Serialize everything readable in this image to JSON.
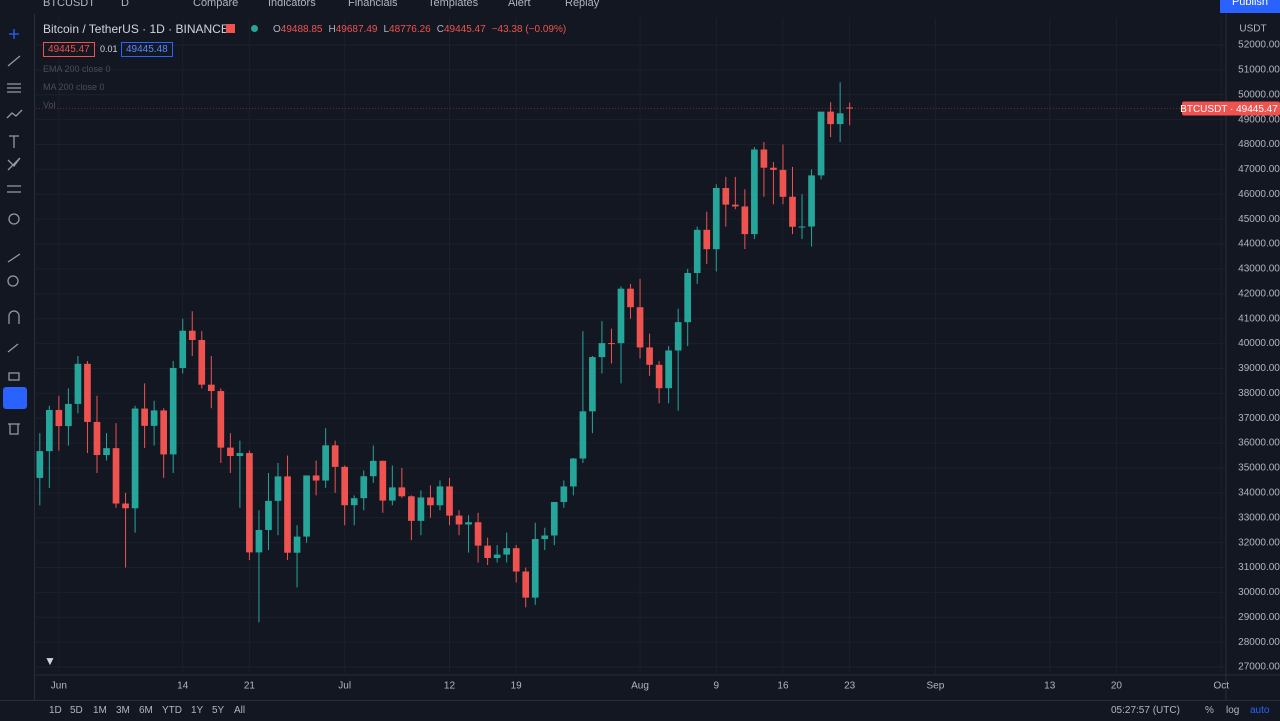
{
  "toolbar": {
    "symbol": "BTCUSDT",
    "interval": "D",
    "items": [
      "Compare",
      "Indicators",
      "Financials",
      "Templates",
      "Alert",
      "Replay"
    ],
    "publish": "Publish"
  },
  "legend": {
    "title": "Bitcoin / TetherUS · 1D · BINANCE",
    "ohlc": [
      {
        "k": "O",
        "v": "49488.85"
      },
      {
        "k": "H",
        "v": "49687.49"
      },
      {
        "k": "L",
        "v": "48776.26"
      },
      {
        "k": "C",
        "v": "49445.47"
      }
    ],
    "change": "−43.38 (−0.09%)",
    "bid": "49445.47",
    "spread": "0.01",
    "ask": "49445.48",
    "studies": [
      "EMA 200 close 0",
      "MA 200 close 0",
      "Vol"
    ]
  },
  "chart_data": {
    "type": "candlestick",
    "currency": "USDT",
    "price_tag": "BTCUSDT · 49445.47",
    "up_color": "#26a69a",
    "down_color": "#ef5350",
    "grid": true,
    "open": [
      34600,
      35678,
      37332,
      36684,
      37575,
      39187,
      36851,
      35520,
      35797,
      33572,
      33380,
      37389,
      36693,
      37313,
      35546,
      39020,
      40516,
      40144,
      38349,
      38092,
      35819,
      35483,
      35600,
      31608,
      32509,
      33678,
      34663,
      31594,
      32243,
      34700,
      34494,
      35911,
      35045,
      33504,
      33786,
      34669,
      35287,
      33690,
      34220,
      33863,
      32875,
      33815,
      33502,
      34259,
      33086,
      32729,
      32820,
      31880,
      31383,
      31520,
      31778,
      30839,
      29790,
      32144,
      32287,
      33634,
      34258,
      35381,
      37276,
      39456,
      40019,
      40016,
      42206,
      41461,
      39845,
      39147,
      38207,
      39723,
      40862,
      42836,
      44572,
      43794,
      46253,
      45584,
      45511,
      44399,
      47800,
      47068,
      46981,
      45901,
      44695,
      44705,
      46760,
      49322,
      48821,
      49488.85
    ],
    "high": [
      36400,
      37500,
      37900,
      38200,
      39500,
      39300,
      37900,
      36400,
      36800,
      34000,
      37500,
      38400,
      37700,
      37400,
      39300,
      41000,
      41300,
      40500,
      39500,
      38200,
      36400,
      36100,
      35700,
      33300,
      34800,
      35200,
      35500,
      32700,
      34700,
      35300,
      36600,
      36100,
      35100,
      33900,
      34900,
      35900,
      35300,
      35100,
      35000,
      33900,
      34100,
      34300,
      34500,
      34600,
      33300,
      33100,
      33200,
      32200,
      31900,
      32400,
      31900,
      31000,
      32800,
      32600,
      33600,
      34500,
      35400,
      40500,
      39500,
      40900,
      40600,
      42300,
      42400,
      42600,
      40400,
      39300,
      39900,
      41400,
      43000,
      44700,
      45300,
      46400,
      46700,
      46700,
      46200,
      47900,
      48100,
      47300,
      48000,
      47100,
      46000,
      47000,
      49300,
      49700,
      50500,
      49687.49
    ],
    "low": [
      33500,
      34200,
      35700,
      35900,
      37200,
      35600,
      34800,
      35300,
      33400,
      31000,
      32400,
      35800,
      35900,
      34600,
      34800,
      38800,
      39500,
      38200,
      37400,
      35200,
      34800,
      33400,
      31300,
      28800,
      31700,
      32300,
      31300,
      30200,
      32000,
      33900,
      34200,
      34000,
      32700,
      32700,
      33300,
      34400,
      33200,
      33500,
      33800,
      32100,
      32300,
      33000,
      33300,
      32700,
      32300,
      31600,
      31200,
      31100,
      31200,
      31200,
      30400,
      29400,
      29500,
      31700,
      31900,
      33400,
      33900,
      35200,
      36400,
      38800,
      39200,
      38400,
      41000,
      39400,
      38700,
      37600,
      37600,
      37300,
      39900,
      42400,
      43200,
      42900,
      44700,
      45400,
      43800,
      44200,
      45900,
      45600,
      45600,
      44400,
      44200,
      43900,
      46600,
      48300,
      48100,
      48776.26
    ],
    "close": [
      35678,
      37332,
      36684,
      37575,
      39187,
      36851,
      35520,
      35797,
      33572,
      33380,
      37389,
      36693,
      37313,
      35546,
      39020,
      40516,
      40144,
      38349,
      38092,
      35819,
      35483,
      35600,
      31608,
      32509,
      33678,
      34663,
      31594,
      32243,
      34700,
      34494,
      35911,
      35045,
      33504,
      33786,
      34669,
      35287,
      33690,
      34220,
      33863,
      32875,
      33815,
      33502,
      34259,
      33086,
      32729,
      32820,
      31880,
      31383,
      31520,
      31778,
      30839,
      29790,
      32144,
      32287,
      33634,
      34258,
      35381,
      37276,
      39456,
      40019,
      40016,
      42206,
      41461,
      39845,
      39147,
      38207,
      39723,
      40862,
      42836,
      44572,
      43794,
      46253,
      45584,
      45511,
      44399,
      47800,
      47068,
      46981,
      45901,
      44695,
      44705,
      46760,
      49322,
      48821,
      49254,
      49445.47
    ],
    "xlim": [
      -0.4,
      124.5
    ],
    "xticks": [
      {
        "value": 2,
        "label": "Jun"
      },
      {
        "value": 15,
        "label": "14"
      },
      {
        "value": 22,
        "label": "21"
      },
      {
        "value": 32,
        "label": "Jul"
      },
      {
        "value": 43,
        "label": "12"
      },
      {
        "value": 50,
        "label": "19"
      },
      {
        "value": 63,
        "label": "Aug"
      },
      {
        "value": 71,
        "label": "9"
      },
      {
        "value": 78,
        "label": "16"
      },
      {
        "value": 85,
        "label": "23"
      },
      {
        "value": 94,
        "label": "Sep"
      },
      {
        "value": 106,
        "label": "13"
      },
      {
        "value": 113,
        "label": "20"
      },
      {
        "value": 124,
        "label": "Oct"
      }
    ],
    "ylim": [
      26680,
      53085
    ],
    "yticks": [
      {
        "value": 52000,
        "label": "52000.00"
      },
      {
        "value": 51000,
        "label": "51000.00"
      },
      {
        "value": 50000,
        "label": "50000.00"
      },
      {
        "value": 49000,
        "label": "49000.00"
      },
      {
        "value": 48000,
        "label": "48000.00"
      },
      {
        "value": 47000,
        "label": "47000.00"
      },
      {
        "value": 46000,
        "label": "46000.00"
      },
      {
        "value": 45000,
        "label": "45000.00"
      },
      {
        "value": 44000,
        "label": "44000.00"
      },
      {
        "value": 43000,
        "label": "43000.00"
      },
      {
        "value": 42000,
        "label": "42000.00"
      },
      {
        "value": 41000,
        "label": "41000.00"
      },
      {
        "value": 40000,
        "label": "40000.00"
      },
      {
        "value": 39000,
        "label": "39000.00"
      },
      {
        "value": 38000,
        "label": "38000.00"
      },
      {
        "value": 37000,
        "label": "37000.00"
      },
      {
        "value": 36000,
        "label": "36000.00"
      },
      {
        "value": 35000,
        "label": "35000.00"
      },
      {
        "value": 34000,
        "label": "34000.00"
      },
      {
        "value": 33000,
        "label": "33000.00"
      },
      {
        "value": 32000,
        "label": "32000.00"
      },
      {
        "value": 31000,
        "label": "31000.00"
      },
      {
        "value": 30000,
        "label": "30000.00"
      },
      {
        "value": 29000,
        "label": "29000.00"
      },
      {
        "value": 28000,
        "label": "28000.00"
      },
      {
        "value": 27000,
        "label": "27000.00"
      }
    ]
  },
  "bottom_bar": {
    "ranges": [
      "1D",
      "5D",
      "1M",
      "3M",
      "6M",
      "YTD",
      "1Y",
      "5Y",
      "All"
    ],
    "time": "05:27:57 (UTC)",
    "options": [
      "%",
      "log",
      "auto"
    ]
  }
}
